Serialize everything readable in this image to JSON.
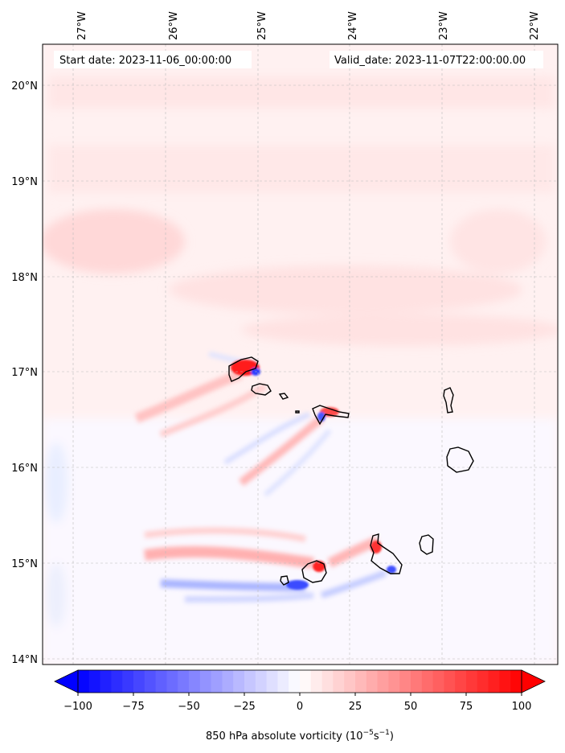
{
  "header": {
    "start_date": "Start date: 2023-11-06_00:00:00",
    "valid_date": "Valid_date: 2023-11-07T22:00:00.00"
  },
  "map": {
    "lon_labels": [
      "27°W",
      "26°W",
      "25°W",
      "24°W",
      "23°W",
      "22°W"
    ],
    "lat_labels": [
      "20°N",
      "19°N",
      "18°N",
      "17°N",
      "16°N",
      "15°N",
      "14°N"
    ],
    "extent": {
      "lon": [
        -27.35,
        -21.75
      ],
      "lat": [
        13.95,
        20.45
      ]
    },
    "gridlines": true,
    "features": "Cape Verde islands coastline"
  },
  "colorbar": {
    "ticks": [
      "−100",
      "−75",
      "−50",
      "−25",
      "0",
      "25",
      "50",
      "75",
      "100"
    ],
    "range": [
      -100,
      100
    ],
    "levels_step": 5,
    "colormap": "bwr",
    "extend": "both",
    "label_prefix": "850 hPa absolute vorticity (10",
    "label_exp1": "−5",
    "label_mid": "s",
    "label_exp2": "−1",
    "label_suffix": ")"
  },
  "colors": {
    "negative": "#0000ff",
    "zero": "#ffffff",
    "positive": "#ff0000",
    "coast": "#000000"
  }
}
